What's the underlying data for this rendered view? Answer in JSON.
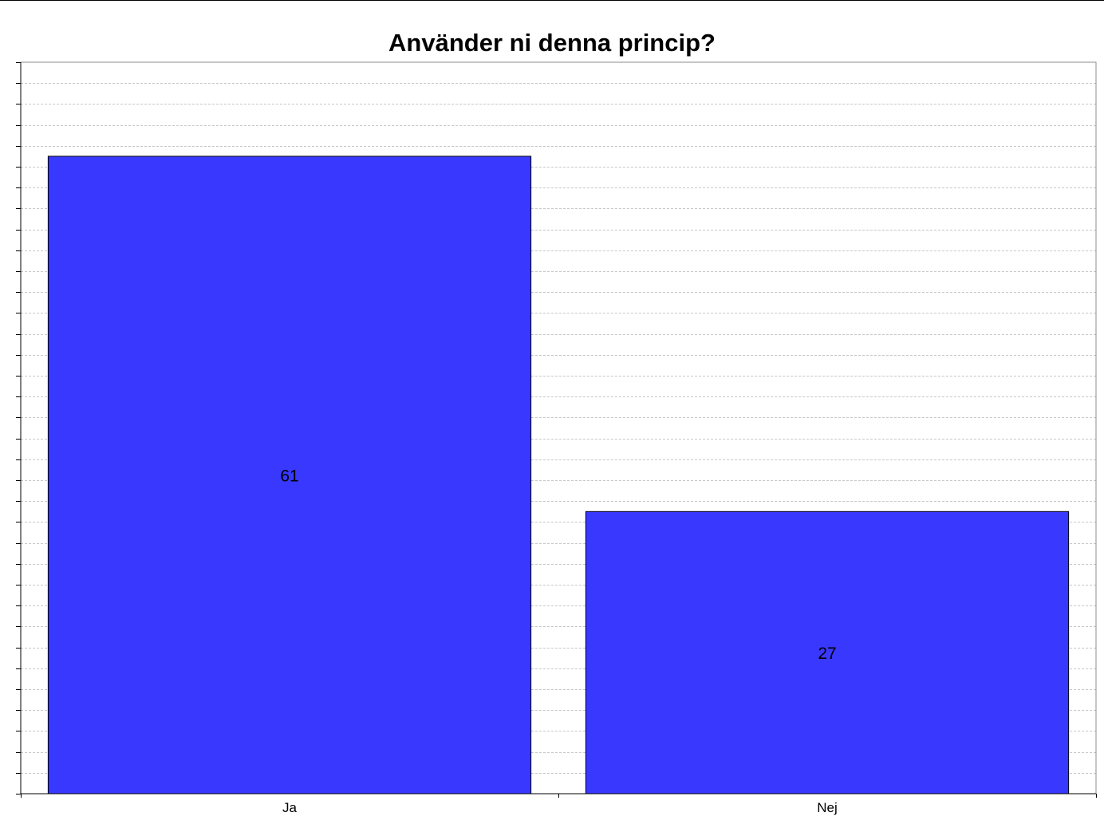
{
  "chart_data": {
    "type": "bar",
    "title": "Använder ni denna princip?",
    "categories": [
      "Ja",
      "Nej"
    ],
    "values": [
      61,
      27
    ],
    "data_labels": [
      "61",
      "27"
    ],
    "xlabel": "",
    "ylabel": "",
    "ylim": [
      0,
      70
    ],
    "y_minor_step": 2,
    "grid": true,
    "bar_color": "#3838ff",
    "grid_color": "#c8c8c8",
    "legend": "none"
  }
}
